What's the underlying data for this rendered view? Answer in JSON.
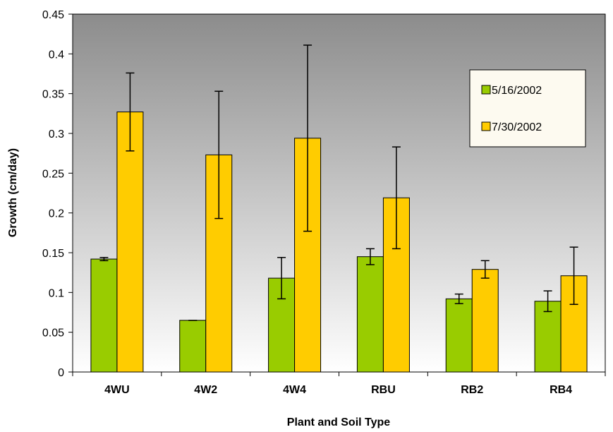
{
  "chart_data": {
    "type": "bar",
    "title": "",
    "xlabel": "Plant and Soil Type",
    "ylabel": "Growth (cm/day)",
    "ylim": [
      0,
      0.45
    ],
    "yticks": [
      0,
      0.05,
      0.1,
      0.15,
      0.2,
      0.25,
      0.3,
      0.35,
      0.4,
      0.45
    ],
    "ytick_labels": [
      "0",
      "0.05",
      "0.1",
      "0.15",
      "0.2",
      "0.25",
      "0.3",
      "0.35",
      "0.4",
      "0.45"
    ],
    "categories": [
      "4WU",
      "4W2",
      "4W4",
      "RBU",
      "RB2",
      "RB4"
    ],
    "series": [
      {
        "name": "5/16/2002",
        "color": "#99cc00",
        "values": [
          0.142,
          0.065,
          0.118,
          0.145,
          0.092,
          0.089
        ],
        "error": [
          0.002,
          0.0,
          0.026,
          0.01,
          0.006,
          0.013
        ]
      },
      {
        "name": "7/30/2002",
        "color": "#ffcc00",
        "values": [
          0.327,
          0.273,
          0.294,
          0.219,
          0.129,
          0.121
        ],
        "error": [
          0.049,
          0.08,
          0.117,
          0.064,
          0.011,
          0.036
        ]
      }
    ],
    "legend_position": "top-right",
    "grid": false,
    "plot_background": "gradient-gray"
  }
}
